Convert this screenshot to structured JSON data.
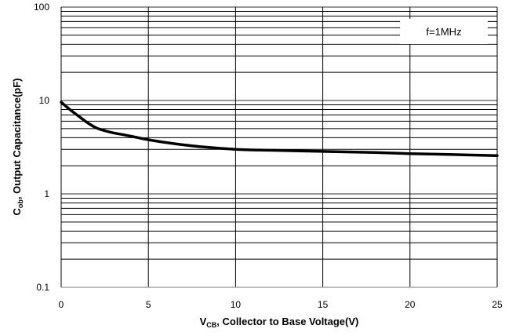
{
  "chart_data": {
    "type": "line",
    "x_scale": "linear",
    "y_scale": "log",
    "xlim": [
      0,
      25
    ],
    "ylim": [
      0.1,
      100
    ],
    "x_ticks": [
      "0",
      "5",
      "10",
      "15",
      "20",
      "25"
    ],
    "y_ticks": [
      "0.1",
      "1",
      "10",
      "100"
    ],
    "xlabel_main": "V",
    "xlabel_sub": "CB",
    "xlabel_rest": ", Collector to Base Voltage(V)",
    "ylabel_main": "C",
    "ylabel_sub": "ob",
    "ylabel_rest": ", Output Capacitance(pF)",
    "annotation": "f=1MHz",
    "grid": true,
    "series": [
      {
        "x": [
          0,
          0.5,
          1,
          1.5,
          2,
          2.5,
          3,
          4,
          5,
          6,
          7,
          8,
          10,
          12,
          15,
          18,
          20,
          22,
          25
        ],
        "y": [
          9.6,
          8.0,
          6.8,
          5.8,
          5.1,
          4.75,
          4.5,
          4.15,
          3.8,
          3.55,
          3.35,
          3.2,
          3.0,
          2.93,
          2.85,
          2.77,
          2.7,
          2.65,
          2.57
        ]
      }
    ],
    "colors": {
      "line": "#000000",
      "grid": "#000000",
      "axis": "#a6a6a6"
    }
  }
}
